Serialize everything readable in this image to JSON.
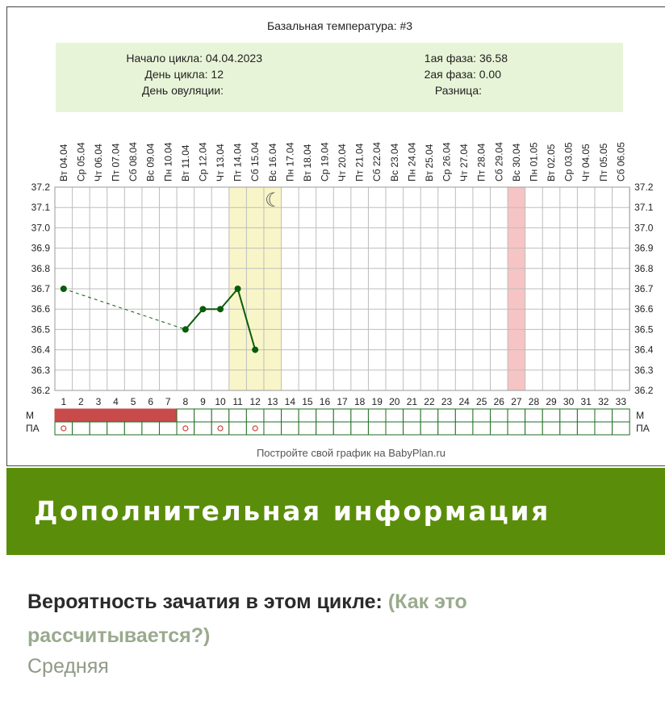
{
  "chart_data": {
    "type": "line",
    "title": "Базальная температура: #3",
    "info": {
      "cycle_start": "Начало цикла: 04.04.2023",
      "cycle_day": "День цикла: 12",
      "ovulation_day": "День овуляции:",
      "phase1": "1ая фаза: 36.58",
      "phase2": "2ая фаза: 0.00",
      "difference": "Разница:"
    },
    "dates": [
      "Вт 04.04",
      "Ср 05.04",
      "Чт 06.04",
      "Пт 07.04",
      "Сб 08.04",
      "Вс 09.04",
      "Пн 10.04",
      "Вт 11.04",
      "Ср 12.04",
      "Чт 13.04",
      "Пт 14.04",
      "Сб 15.04",
      "Вс 16.04",
      "Пн 17.04",
      "Вт 18.04",
      "Ср 19.04",
      "Чт 20.04",
      "Пт 21.04",
      "Сб 22.04",
      "Вс 23.04",
      "Пн 24.04",
      "Вт 25.04",
      "Ср 26.04",
      "Чт 27.04",
      "Пт 28.04",
      "Сб 29.04",
      "Вс 30.04",
      "Пн 01.05",
      "Вт 02.05",
      "Ср 03.05",
      "Чт 04.05",
      "Пт 05.05",
      "Сб 06.05"
    ],
    "x": [
      1,
      2,
      3,
      4,
      5,
      6,
      7,
      8,
      9,
      10,
      11,
      12,
      13,
      14,
      15,
      16,
      17,
      18,
      19,
      20,
      21,
      22,
      23,
      24,
      25,
      26,
      27,
      28,
      29,
      30,
      31,
      32,
      33
    ],
    "ylim": [
      36.2,
      37.2
    ],
    "yticks": [
      "37.2",
      "37.1",
      "37.0",
      "36.9",
      "36.8",
      "36.7",
      "36.6",
      "36.5",
      "36.4",
      "36.3",
      "36.2"
    ],
    "series": [
      {
        "points": [
          [
            1,
            36.7
          ],
          [
            8,
            36.5
          ],
          [
            9,
            36.6
          ],
          [
            10,
            36.6
          ],
          [
            11,
            36.7
          ],
          [
            12,
            36.4
          ]
        ],
        "dashed_between": [
          [
            1,
            8
          ]
        ],
        "color": "#0a5c0a"
      }
    ],
    "fertile_window": [
      11,
      13
    ],
    "fertile_color": "#f8f6c8",
    "highlight_day": 27,
    "highlight_color": "#f6c4c4",
    "moon_day": 13,
    "moon_symbol": "☾",
    "rows": {
      "m_label": "М",
      "pa_label": "ПА",
      "m_days": [
        1,
        2,
        3,
        4,
        5,
        6,
        7
      ],
      "m_color": "#c84a4a",
      "pa_days": [
        1,
        8,
        10,
        12
      ],
      "pa_symbol": "○"
    },
    "footer": "Постройте свой график на BabyPlan.ru",
    "grid": true
  },
  "banner": {
    "title": "Дополнительная информация",
    "color": "#5a8e0a"
  },
  "probability": {
    "label": "Вероятность зачатия в этом цикле:",
    "link": "(Как это рассчитывается?)",
    "value": "Средняя"
  }
}
